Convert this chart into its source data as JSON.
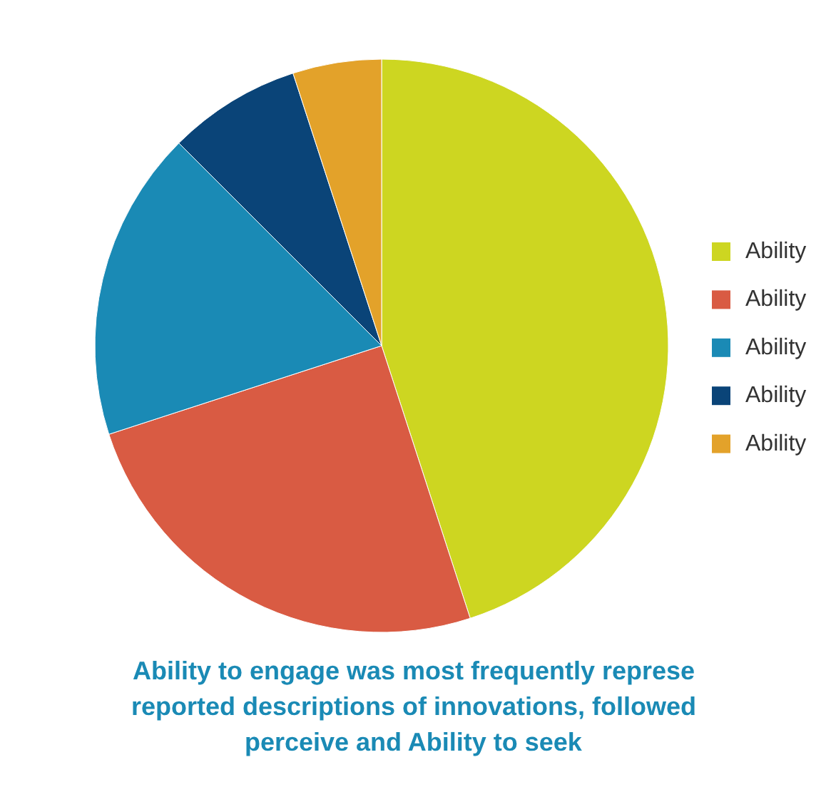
{
  "chart_data": {
    "type": "pie",
    "categories": [
      "Ability",
      "Ability",
      "Ability",
      "Ability",
      "Ability"
    ],
    "values": [
      45,
      25,
      17.5,
      7.5,
      5
    ],
    "colors": [
      "#cdd621",
      "#d95b43",
      "#1a8ab5",
      "#0a4478",
      "#e3a22a"
    ],
    "legend": "right",
    "annotations": [
      "Ability to engage was most frequently represe",
      "reported descriptions of innovations, followed",
      "perceive and Ability to seek"
    ]
  }
}
